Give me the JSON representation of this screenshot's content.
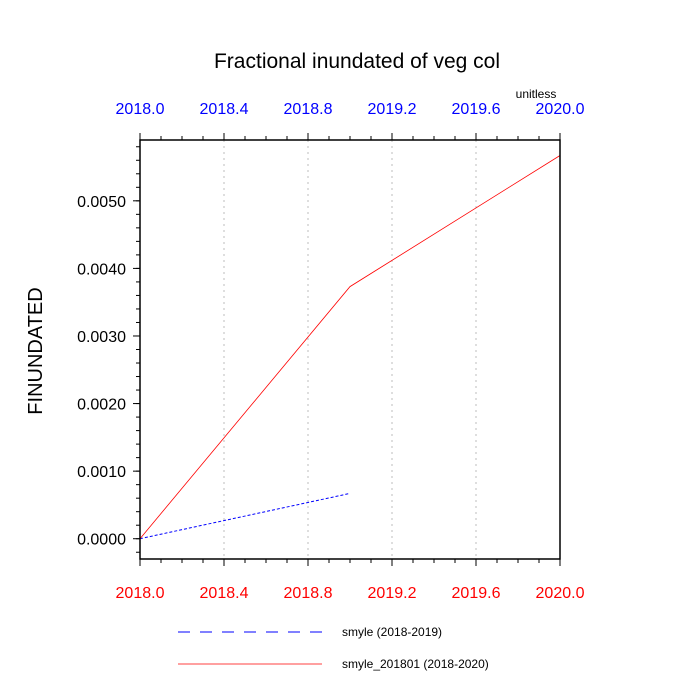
{
  "chart_data": {
    "type": "line",
    "title": "Fractional inundated of veg col",
    "units_label": "unitless",
    "ylabel": "FINUNDATED",
    "xlabel": "",
    "xlim": [
      2018.0,
      2020.0
    ],
    "ylim": [
      -0.0003,
      0.0059
    ],
    "x_ticks": [
      2018.0,
      2018.4,
      2018.8,
      2019.2,
      2019.6,
      2020.0
    ],
    "x_tick_labels": [
      "2018.0",
      "2018.4",
      "2018.8",
      "2019.2",
      "2019.6",
      "2020.0"
    ],
    "y_ticks": [
      0.0,
      0.001,
      0.002,
      0.003,
      0.004,
      0.005
    ],
    "y_tick_labels": [
      "0.0000",
      "0.0010",
      "0.0020",
      "0.0030",
      "0.0040",
      "0.0050"
    ],
    "grid": "vertical-dotted",
    "legend_position": "bottom",
    "top_axis_color": "#0000ff",
    "bottom_axis_color": "#ff0000",
    "series": [
      {
        "name": "smyle (2018-2019)",
        "color": "#0000ff",
        "dash": "dashed",
        "x": [
          2018.0,
          2019.0
        ],
        "y": [
          0.0,
          0.00067
        ]
      },
      {
        "name": "smyle_201801 (2018-2020)",
        "color": "#ff0000",
        "dash": "solid",
        "x": [
          2018.0,
          2019.0,
          2020.0
        ],
        "y": [
          0.0,
          0.00373,
          0.00567
        ]
      }
    ]
  }
}
